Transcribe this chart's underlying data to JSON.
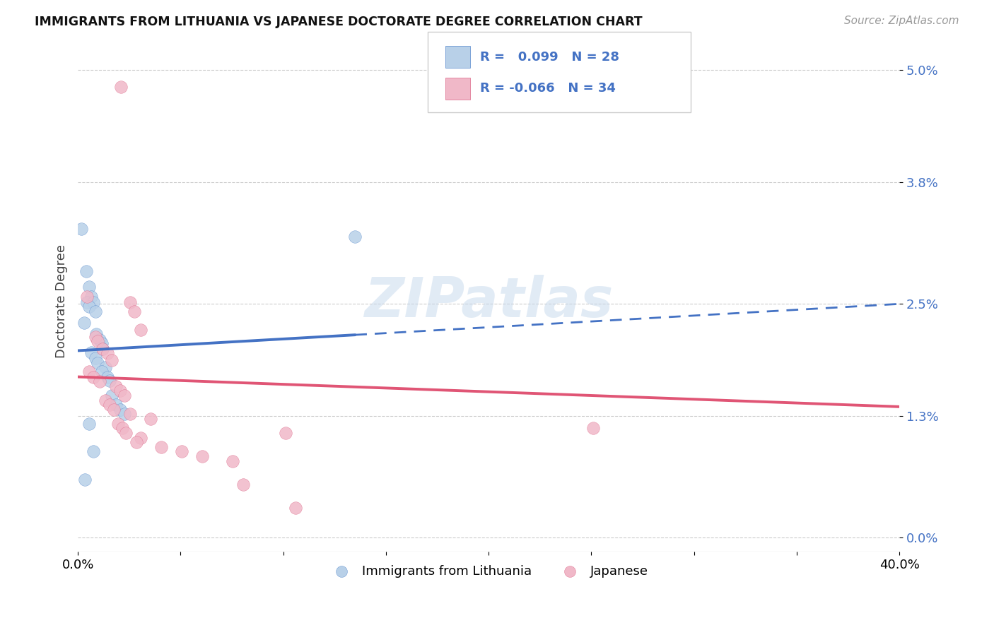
{
  "title": "IMMIGRANTS FROM LITHUANIA VS JAPANESE DOCTORATE DEGREE CORRELATION CHART",
  "source": "Source: ZipAtlas.com",
  "ylabel": "Doctorate Degree",
  "yticks": [
    "0.0%",
    "1.3%",
    "2.5%",
    "3.8%",
    "5.0%"
  ],
  "ytick_vals": [
    0.0,
    1.3,
    2.5,
    3.8,
    5.0
  ],
  "xmin": 0.0,
  "xmax": 40.0,
  "ymin": -0.15,
  "ymax": 5.2,
  "legend1_R": "0.099",
  "legend1_N": "28",
  "legend2_R": "-0.066",
  "legend2_N": "34",
  "blue_fill": "#b8d0e8",
  "pink_fill": "#f0b8c8",
  "blue_edge": "#5588cc",
  "pink_edge": "#dd6688",
  "blue_line": "#4472C4",
  "pink_line": "#E05575",
  "blue_scatter": [
    [
      0.15,
      3.3
    ],
    [
      0.4,
      2.85
    ],
    [
      0.55,
      2.68
    ],
    [
      0.65,
      2.58
    ],
    [
      0.45,
      2.52
    ],
    [
      0.75,
      2.52
    ],
    [
      0.55,
      2.47
    ],
    [
      0.85,
      2.42
    ],
    [
      0.9,
      2.18
    ],
    [
      1.05,
      2.12
    ],
    [
      1.15,
      2.08
    ],
    [
      1.2,
      2.02
    ],
    [
      0.65,
      1.98
    ],
    [
      0.85,
      1.92
    ],
    [
      0.95,
      1.87
    ],
    [
      1.35,
      1.82
    ],
    [
      1.15,
      1.78
    ],
    [
      1.45,
      1.72
    ],
    [
      1.55,
      1.68
    ],
    [
      1.65,
      1.52
    ],
    [
      1.85,
      1.42
    ],
    [
      2.05,
      1.37
    ],
    [
      2.25,
      1.32
    ],
    [
      0.55,
      1.22
    ],
    [
      0.75,
      0.92
    ],
    [
      0.35,
      0.62
    ],
    [
      13.5,
      3.22
    ],
    [
      0.3,
      2.3
    ]
  ],
  "pink_scatter": [
    [
      2.1,
      4.82
    ],
    [
      0.45,
      2.58
    ],
    [
      2.55,
      2.52
    ],
    [
      2.75,
      2.42
    ],
    [
      3.05,
      2.22
    ],
    [
      0.85,
      2.15
    ],
    [
      0.95,
      2.1
    ],
    [
      1.2,
      2.02
    ],
    [
      1.45,
      1.97
    ],
    [
      1.65,
      1.9
    ],
    [
      0.55,
      1.78
    ],
    [
      0.75,
      1.72
    ],
    [
      1.05,
      1.67
    ],
    [
      1.85,
      1.62
    ],
    [
      2.05,
      1.57
    ],
    [
      2.25,
      1.52
    ],
    [
      1.35,
      1.47
    ],
    [
      1.55,
      1.42
    ],
    [
      1.75,
      1.37
    ],
    [
      2.55,
      1.32
    ],
    [
      3.55,
      1.27
    ],
    [
      1.95,
      1.22
    ],
    [
      2.15,
      1.17
    ],
    [
      2.35,
      1.12
    ],
    [
      3.05,
      1.07
    ],
    [
      2.85,
      1.02
    ],
    [
      4.05,
      0.97
    ],
    [
      5.05,
      0.92
    ],
    [
      6.05,
      0.87
    ],
    [
      7.55,
      0.82
    ],
    [
      10.1,
      1.12
    ],
    [
      25.1,
      1.17
    ],
    [
      8.05,
      0.57
    ],
    [
      10.6,
      0.32
    ]
  ],
  "blue_line_intercept": 2.0,
  "blue_line_slope": 0.0125,
  "pink_line_intercept": 1.72,
  "pink_line_slope": -0.008,
  "blue_solid_xmax": 13.5,
  "pink_solid_xmax": 40.0,
  "watermark": "ZIPatlas",
  "background_color": "#ffffff",
  "grid_color": "#cccccc"
}
